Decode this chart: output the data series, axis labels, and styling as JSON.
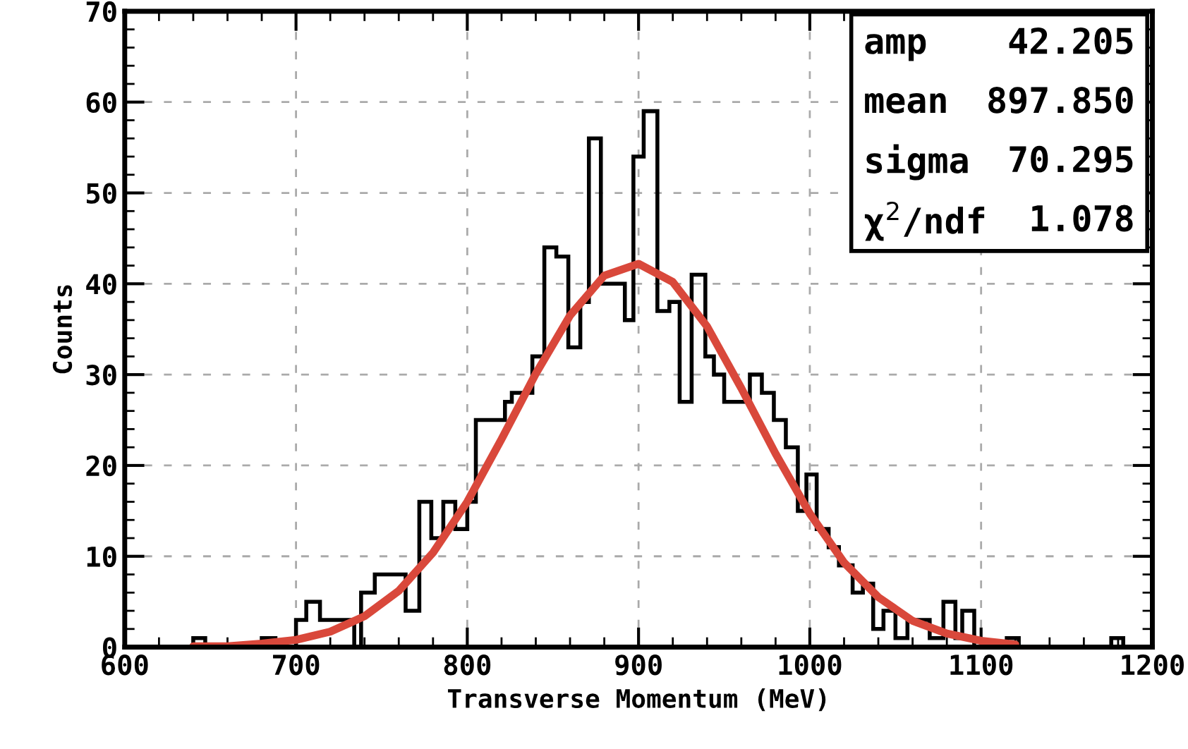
{
  "chart_data": {
    "type": "histogram",
    "xlabel": "Transverse Momentum (MeV)",
    "ylabel": "Counts",
    "bins": [
      600,
      640,
      647,
      680,
      688,
      700,
      706,
      714,
      734,
      738,
      746,
      764,
      772,
      779,
      786,
      793,
      800,
      805,
      822,
      826,
      838,
      845,
      852,
      859,
      866,
      871,
      878,
      892,
      897,
      903,
      911,
      918,
      924,
      931,
      939,
      944,
      950,
      965,
      972,
      979,
      986,
      993,
      998,
      1004,
      1011,
      1017,
      1025,
      1031,
      1037,
      1043,
      1050,
      1057,
      1070,
      1078,
      1085,
      1089,
      1096,
      1115,
      1122,
      1176,
      1183,
      1200
    ],
    "values": [
      0,
      1,
      0,
      1,
      0,
      3,
      5,
      3,
      0,
      6,
      8,
      4,
      16,
      12,
      16,
      13,
      16,
      25,
      27,
      28,
      32,
      44,
      43,
      33,
      38,
      56,
      40,
      36,
      54,
      59,
      37,
      38,
      27,
      41,
      32,
      30,
      27,
      30,
      28,
      25,
      22,
      15,
      19,
      13,
      11,
      9,
      6,
      7,
      2,
      4,
      1,
      3,
      1,
      5,
      1,
      4,
      0,
      1,
      0,
      1,
      0
    ],
    "color": "#000000",
    "series": [
      {
        "type": "line",
        "color": "#d9483b",
        "x": [
          640,
          660,
          680,
          700,
          720,
          740,
          760,
          780,
          800,
          820,
          840,
          860,
          880,
          900,
          920,
          940,
          960,
          980,
          1000,
          1020,
          1040,
          1060,
          1080,
          1100,
          1120
        ],
        "values": [
          0.1,
          0.1,
          0.4,
          0.8,
          1.7,
          3.4,
          6.2,
          10.4,
          16.0,
          22.9,
          30.1,
          36.5,
          40.9,
          42.2,
          40.2,
          35.3,
          28.5,
          21.3,
          14.7,
          9.3,
          5.5,
          2.9,
          1.5,
          0.7,
          0.3
        ]
      }
    ],
    "xlim": [
      600,
      1200
    ],
    "xticks": [
      600,
      700,
      800,
      900,
      1000,
      1100,
      1200
    ],
    "ylim": [
      0,
      70
    ],
    "yticks": [
      0,
      10,
      20,
      30,
      40,
      50,
      60,
      70
    ],
    "grid": true,
    "legend": false,
    "annotations": [
      "amp",
      "42.205",
      "mean",
      "897.850",
      "sigma",
      "70.295",
      "χ$^{2}$/ndf",
      "1.078"
    ]
  }
}
